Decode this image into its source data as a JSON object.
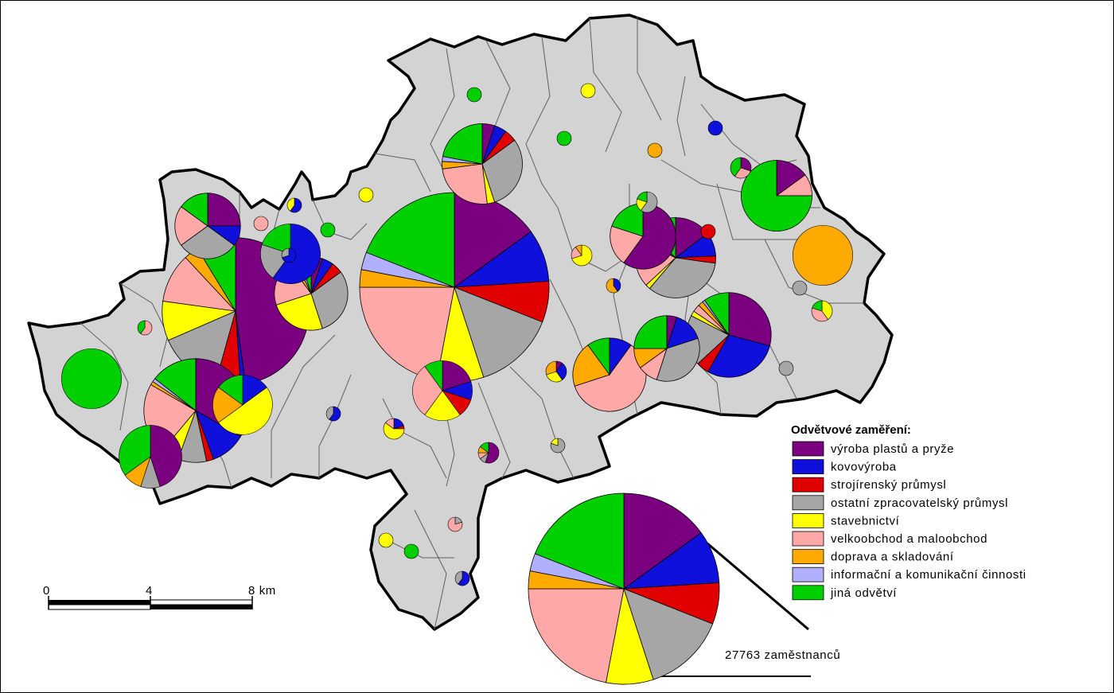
{
  "legend": {
    "title": "Odvětvové zaměření:",
    "items": [
      {
        "label": "výroba plastů a pryže",
        "color": "#7a0080"
      },
      {
        "label": "kovovýroba",
        "color": "#1010dd"
      },
      {
        "label": "strojírenský průmysl",
        "color": "#e00000"
      },
      {
        "label": "ostatní zpracovatelský průmysl",
        "color": "#a6a6a6"
      },
      {
        "label": "stavebnictví",
        "color": "#ffff00"
      },
      {
        "label": "velkoobchod a maloobchod",
        "color": "#ffa8a8"
      },
      {
        "label": "doprava a skladování",
        "color": "#ffaa00"
      },
      {
        "label": "informační a komunikační činnosti",
        "color": "#b0b0ff"
      },
      {
        "label": "jiná odvětví",
        "color": "#00d000"
      }
    ]
  },
  "size_legend": {
    "label": "27763 zaměstnanců",
    "shares": [
      15,
      9,
      7,
      14,
      8,
      22,
      3,
      3,
      19
    ]
  },
  "scale_bar": {
    "ticks": [
      "0",
      "4",
      "8 km"
    ]
  },
  "map_fill_color": "#d3d3d3",
  "pies": [
    {
      "size": 1.0,
      "shares": [
        15,
        9,
        7,
        14,
        8,
        22,
        3,
        3,
        19
      ]
    },
    {
      "size": 0.6,
      "shares": [
        44,
        1,
        5,
        13,
        8,
        10,
        3,
        0,
        8
      ]
    },
    {
      "size": 0.3,
      "shares": [
        30,
        10,
        2,
        8,
        5,
        20,
        1,
        1,
        13
      ]
    },
    {
      "size": 0.2,
      "shares": [
        30,
        30,
        5,
        20,
        2,
        3,
        2,
        1,
        10
      ]
    },
    {
      "size": 0.18,
      "shares": [
        15,
        10,
        3,
        35,
        2,
        20,
        2,
        3,
        13
      ]
    },
    {
      "size": 0.18,
      "shares": [
        5,
        5,
        5,
        30,
        3,
        25,
        3,
        2,
        22
      ]
    },
    {
      "size": 0.15,
      "shares": [
        5,
        5,
        5,
        30,
        25,
        20,
        3,
        2,
        5
      ]
    },
    {
      "size": 0.15,
      "shares": [
        0,
        10,
        0,
        0,
        0,
        60,
        20,
        0,
        10
      ]
    },
    {
      "size": 0.14,
      "shares": [
        15,
        0,
        0,
        0,
        0,
        10,
        0,
        0,
        75
      ]
    },
    {
      "size": 0.12,
      "shares": [
        25,
        10,
        0,
        30,
        0,
        20,
        0,
        0,
        15
      ]
    },
    {
      "size": 0.12,
      "shares": [
        60,
        0,
        0,
        0,
        0,
        20,
        0,
        0,
        20
      ]
    },
    {
      "size": 0.12,
      "shares": [
        5,
        15,
        0,
        35,
        0,
        10,
        10,
        0,
        25
      ]
    },
    {
      "size": 0.11,
      "shares": [
        45,
        0,
        0,
        10,
        0,
        0,
        10,
        0,
        35
      ]
    },
    {
      "size": 0.1,
      "shares": [
        20,
        10,
        10,
        0,
        20,
        30,
        0,
        0,
        10
      ]
    },
    {
      "size": 0.1,
      "shares": [
        0,
        15,
        0,
        0,
        50,
        0,
        20,
        0,
        15
      ]
    },
    {
      "size": 0.1,
      "shares": [
        0,
        60,
        0,
        20,
        0,
        0,
        0,
        0,
        20
      ]
    },
    {
      "size": 0.1,
      "shares": [
        0,
        0,
        0,
        0,
        0,
        0,
        50,
        0,
        0
      ]
    },
    {
      "size": 0.1,
      "shares": [
        0,
        0,
        0,
        0,
        0,
        0,
        0,
        0,
        100
      ]
    }
  ]
}
